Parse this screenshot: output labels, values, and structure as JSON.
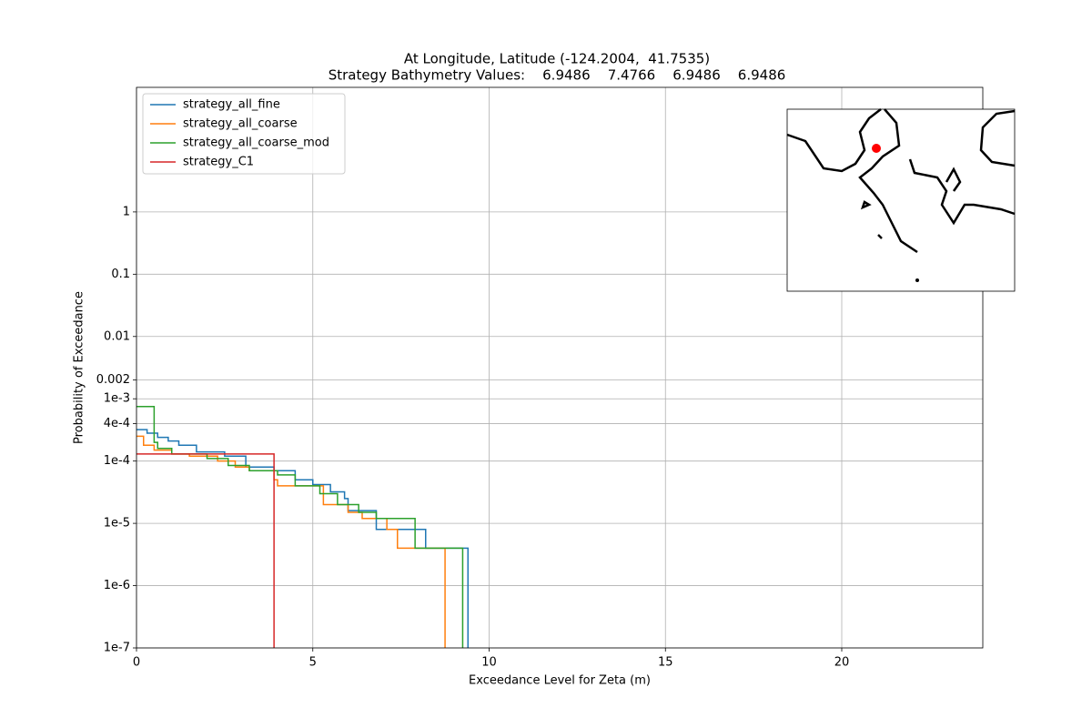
{
  "chart_data": {
    "type": "line",
    "drawstyle": "steps-post",
    "title": "At Longitude, Latitude (-124.2004,  41.7535)",
    "subtitle": "Strategy Bathymetry Values:    6.9486    7.4766    6.9486    6.9486",
    "xlabel": "Exceedance Level for Zeta (m)",
    "ylabel": "Probability of Exceedance",
    "xlim": [
      0,
      24
    ],
    "ylim": [
      1e-07,
      100
    ],
    "yscale": "log",
    "grid": true,
    "legend": "upper left",
    "xticks": [
      0,
      5,
      10,
      15,
      20
    ],
    "yticks": [
      {
        "value": 1e-07,
        "label": "1e-7"
      },
      {
        "value": 1e-06,
        "label": "1e-6"
      },
      {
        "value": 1e-05,
        "label": "1e-5"
      },
      {
        "value": 0.0001,
        "label": "1e-4"
      },
      {
        "value": 0.0004,
        "label": "4e-4"
      },
      {
        "value": 0.001,
        "label": "1e-3"
      },
      0.002,
      0.01,
      0.1,
      1
    ],
    "series": [
      {
        "name": "strategy_all_fine",
        "color": "#1f77b4",
        "x": [
          0,
          0.3,
          0.6,
          0.9,
          1.2,
          1.7,
          2.5,
          3.1,
          3.9,
          4.5,
          5.0,
          5.5,
          5.9,
          6.0,
          6.8,
          7.3,
          8.2,
          9.4
        ],
        "values": [
          0.00032,
          0.00028,
          0.00024,
          0.00021,
          0.00018,
          0.00014,
          0.00012,
          8e-05,
          7e-05,
          5e-05,
          4.2e-05,
          3.2e-05,
          2.5e-05,
          1.6e-05,
          8e-06,
          8e-06,
          4e-06,
          1e-07
        ]
      },
      {
        "name": "strategy_all_coarse",
        "color": "#ff7f0e",
        "x": [
          0,
          0.2,
          0.5,
          1.0,
          1.5,
          2.3,
          2.8,
          3.2,
          3.9,
          4.0,
          5.0,
          5.3,
          6.0,
          6.4,
          7.1,
          7.4,
          8.75
        ],
        "values": [
          0.00025,
          0.00018,
          0.00015,
          0.00013,
          0.00012,
          0.0001,
          8e-05,
          7e-05,
          5e-05,
          4e-05,
          4e-05,
          2e-05,
          1.5e-05,
          1.2e-05,
          8e-06,
          4e-06,
          1e-07
        ]
      },
      {
        "name": "strategy_all_coarse_mod",
        "color": "#2ca02c",
        "x": [
          0,
          0.5,
          0.6,
          1.0,
          2.0,
          2.6,
          3.2,
          4.0,
          4.5,
          5.2,
          5.7,
          6.3,
          6.8,
          7.9,
          9.25
        ],
        "values": [
          0.00075,
          0.0002,
          0.00016,
          0.00013,
          0.00011,
          8.5e-05,
          7e-05,
          6e-05,
          4e-05,
          3e-05,
          2e-05,
          1.5e-05,
          1.2e-05,
          4e-06,
          1e-07
        ]
      },
      {
        "name": "strategy_C1",
        "color": "#d62728",
        "x": [
          0,
          3.9
        ],
        "values": [
          0.00013,
          1e-07
        ]
      }
    ]
  }
}
